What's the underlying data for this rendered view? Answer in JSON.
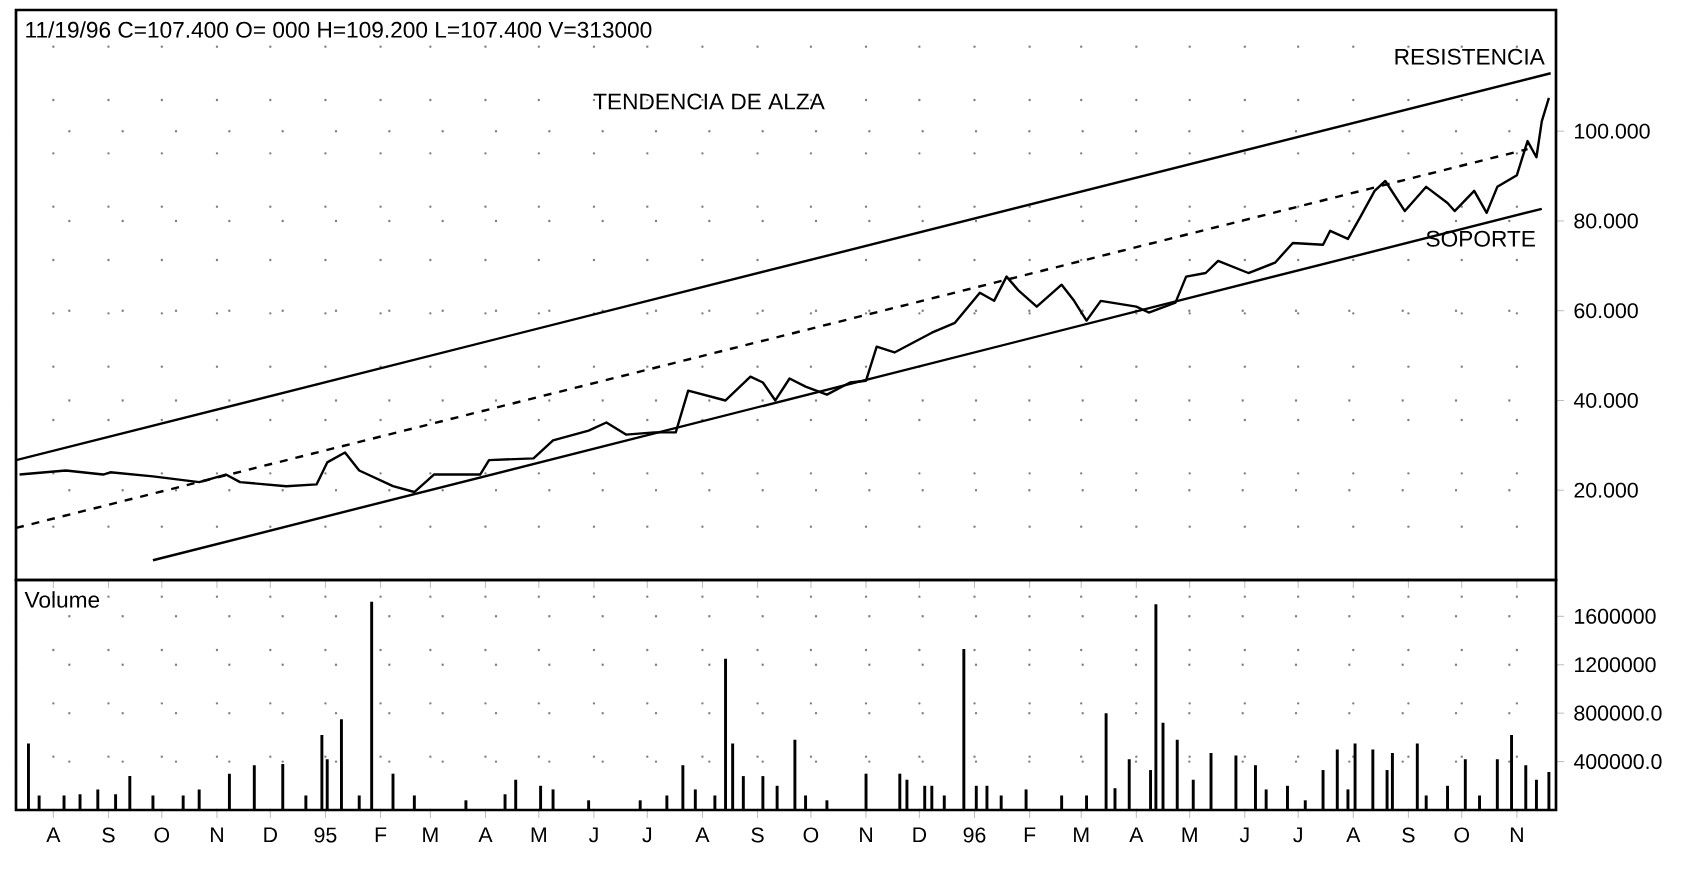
{
  "chart_data": [
    {
      "type": "line",
      "title": "11/19/96 C=107.400 O= 000 H=109.200 L=107.400 V=313000",
      "annotations": [
        "TENDENCIA DE ALZA",
        {
          "text": "RESISTENCIA",
          "x": "1996-11-20",
          "y": 112.9
        },
        {
          "text": "SOPORTE",
          "x": "1996-11-15",
          "y": 82.7
        }
      ],
      "series": [
        {
          "color": "#000000",
          "line_style": "solid",
          "x": [
            "1994-07-13",
            "1994-08-08",
            "1994-08-29",
            "1994-09-02",
            "1994-09-26",
            "1994-10-22",
            "1994-11-06",
            "1994-11-14",
            "1994-12-10",
            "1994-12-27",
            "1995-01-02",
            "1995-01-12",
            "1995-01-20",
            "1995-02-08",
            "1995-02-20",
            "1995-03-03",
            "1995-03-29",
            "1995-04-03",
            "1995-04-28",
            "1995-05-09",
            "1995-05-29",
            "1995-06-08",
            "1995-06-19",
            "1995-07-05",
            "1995-07-17",
            "1995-07-24",
            "1995-08-14",
            "1995-08-28",
            "1995-09-04",
            "1995-09-11",
            "1995-09-19",
            "1995-09-28",
            "1995-10-10",
            "1995-10-23",
            "1995-11-01",
            "1995-11-07",
            "1995-11-17",
            "1995-12-08",
            "1995-12-21",
            "1996-01-04",
            "1996-01-12",
            "1996-01-19",
            "1996-01-26",
            "1996-02-05",
            "1996-02-19",
            "1996-02-26",
            "1996-03-04",
            "1996-03-12",
            "1996-04-01",
            "1996-04-08",
            "1996-04-23",
            "1996-04-29",
            "1996-05-10",
            "1996-05-17",
            "1996-06-03",
            "1996-06-18",
            "1996-06-28",
            "1996-07-15",
            "1996-07-19",
            "1996-07-29",
            "1996-08-05",
            "1996-08-13",
            "1996-08-19",
            "1996-08-30",
            "1996-09-11",
            "1996-09-23",
            "1996-09-27",
            "1996-10-08",
            "1996-10-15",
            "1996-10-21",
            "1996-11-01",
            "1996-11-07",
            "1996-11-12",
            "1996-11-15",
            "1996-11-19"
          ],
          "values": [
            23.5,
            24.4,
            23.5,
            24,
            23.1,
            21.8,
            23.5,
            21.8,
            20.9,
            21.3,
            26.2,
            28.4,
            24.4,
            20.9,
            19.6,
            23.5,
            23.5,
            26.7,
            27.1,
            31.1,
            33.3,
            35.1,
            32.4,
            32.9,
            32.9,
            42.2,
            40,
            45.3,
            44,
            40,
            44.9,
            43.1,
            41.3,
            44,
            44.4,
            52,
            50.7,
            55.1,
            57.3,
            64,
            62.2,
            67.6,
            64.4,
            60.9,
            65.8,
            62.2,
            57.8,
            62.2,
            60.9,
            59.6,
            61.8,
            67.6,
            68.4,
            71.1,
            68.4,
            70.7,
            75.1,
            74.7,
            77.8,
            76,
            80.9,
            86.7,
            88.9,
            82.2,
            87.6,
            84,
            82.2,
            86.7,
            81.8,
            87.6,
            90.2,
            97.8,
            94.2,
            102.2,
            107.4
          ]
        },
        {
          "color": "#000000",
          "line_style": "solid",
          "x": [
            "1994-07-11",
            "1996-11-20"
          ],
          "values": [
            26.7,
            112.9
          ]
        },
        {
          "color": "#000000",
          "line_style": "dashed",
          "x": [
            "1994-07-11",
            "1996-11-07"
          ],
          "values": [
            11.6,
            96
          ]
        },
        {
          "color": "#000000",
          "line_style": "solid",
          "x": [
            "1994-09-26",
            "1996-11-15"
          ],
          "values": [
            4.4,
            82.7
          ]
        }
      ],
      "xlim": [
        "1994-07-11",
        "1996-11-23"
      ],
      "ylim": [
        0,
        127
      ],
      "yticks": [
        {
          "value": 20,
          "label": "20.000"
        },
        {
          "value": 40,
          "label": "40.000"
        },
        {
          "value": 60,
          "label": "60.000"
        },
        {
          "value": 80,
          "label": "80.000"
        },
        {
          "value": 100,
          "label": "100.000"
        }
      ],
      "grid": true,
      "tick_labels": "y"
    },
    {
      "type": "bar",
      "title": "Volume",
      "color": "#000000",
      "x": [
        "1994-07-18",
        "1994-07-24",
        "1994-08-07",
        "1994-08-16",
        "1994-08-26",
        "1994-09-05",
        "1994-09-13",
        "1994-09-26",
        "1994-10-13",
        "1994-10-22",
        "1994-11-08",
        "1994-11-22",
        "1994-12-08",
        "1994-12-21",
        "1994-12-30",
        "1995-01-02",
        "1995-01-10",
        "1995-01-20",
        "1995-01-27",
        "1995-02-08",
        "1995-02-20",
        "1995-03-21",
        "1995-04-12",
        "1995-04-18",
        "1995-05-02",
        "1995-05-09",
        "1995-05-29",
        "1995-06-27",
        "1995-07-12",
        "1995-07-21",
        "1995-07-28",
        "1995-08-08",
        "1995-08-14",
        "1995-08-18",
        "1995-08-24",
        "1995-09-04",
        "1995-09-12",
        "1995-09-22",
        "1995-09-28",
        "1995-10-10",
        "1995-11-01",
        "1995-11-20",
        "1995-11-24",
        "1995-12-04",
        "1995-12-08",
        "1995-12-15",
        "1995-12-26",
        "1996-01-02",
        "1996-01-08",
        "1996-01-16",
        "1996-01-30",
        "1996-02-19",
        "1996-03-04",
        "1996-03-15",
        "1996-03-20",
        "1996-03-28",
        "1996-04-09",
        "1996-04-12",
        "1996-04-16",
        "1996-04-24",
        "1996-05-03",
        "1996-05-13",
        "1996-05-27",
        "1996-06-07",
        "1996-06-13",
        "1996-06-25",
        "1996-07-05",
        "1996-07-15",
        "1996-07-23",
        "1996-07-29",
        "1996-08-02",
        "1996-08-12",
        "1996-08-20",
        "1996-08-23",
        "1996-09-06",
        "1996-09-11",
        "1996-09-23",
        "1996-10-03",
        "1996-10-11",
        "1996-10-21",
        "1996-10-29",
        "1996-11-06",
        "1996-11-12",
        "1996-11-19"
      ],
      "values": [
        550000,
        120000,
        120000,
        130000,
        170000,
        130000,
        280000,
        120000,
        120000,
        170000,
        300000,
        370000,
        380000,
        120000,
        620000,
        420000,
        750000,
        120000,
        1720000,
        300000,
        120000,
        80000,
        130000,
        250000,
        200000,
        170000,
        80000,
        80000,
        120000,
        370000,
        170000,
        120000,
        1250000,
        550000,
        280000,
        280000,
        200000,
        580000,
        120000,
        80000,
        300000,
        300000,
        250000,
        200000,
        200000,
        120000,
        1330000,
        200000,
        200000,
        120000,
        170000,
        120000,
        120000,
        800000,
        180000,
        420000,
        330000,
        1700000,
        720000,
        580000,
        250000,
        470000,
        450000,
        370000,
        170000,
        200000,
        80000,
        330000,
        500000,
        170000,
        550000,
        500000,
        330000,
        470000,
        550000,
        120000,
        200000,
        420000,
        120000,
        420000,
        620000,
        370000,
        250000,
        313000
      ],
      "xlim": [
        "1994-07-11",
        "1996-11-23"
      ],
      "xticks": [
        {
          "value": "1994-08-01",
          "label": "A"
        },
        {
          "value": "1994-09-01",
          "label": "S"
        },
        {
          "value": "1994-10-01",
          "label": "O"
        },
        {
          "value": "1994-11-01",
          "label": "N"
        },
        {
          "value": "1994-12-01",
          "label": "D"
        },
        {
          "value": "1995-01-01",
          "label": "95"
        },
        {
          "value": "1995-02-01",
          "label": "F"
        },
        {
          "value": "1995-03-01",
          "label": "M"
        },
        {
          "value": "1995-04-01",
          "label": "A"
        },
        {
          "value": "1995-05-01",
          "label": "M"
        },
        {
          "value": "1995-06-01",
          "label": "J"
        },
        {
          "value": "1995-07-01",
          "label": "J"
        },
        {
          "value": "1995-08-01",
          "label": "A"
        },
        {
          "value": "1995-09-01",
          "label": "S"
        },
        {
          "value": "1995-10-01",
          "label": "O"
        },
        {
          "value": "1995-11-01",
          "label": "N"
        },
        {
          "value": "1995-12-01",
          "label": "D"
        },
        {
          "value": "1996-01-01",
          "label": "96"
        },
        {
          "value": "1996-02-01",
          "label": "F"
        },
        {
          "value": "1996-03-01",
          "label": "M"
        },
        {
          "value": "1996-04-01",
          "label": "A"
        },
        {
          "value": "1996-05-01",
          "label": "M"
        },
        {
          "value": "1996-06-01",
          "label": "J"
        },
        {
          "value": "1996-07-01",
          "label": "J"
        },
        {
          "value": "1996-08-01",
          "label": "A"
        },
        {
          "value": "1996-09-01",
          "label": "S"
        },
        {
          "value": "1996-10-01",
          "label": "O"
        },
        {
          "value": "1996-11-01",
          "label": "N"
        }
      ],
      "ylim": [
        0,
        1900000
      ],
      "yticks": [
        {
          "value": 400000,
          "label": "400000.0"
        },
        {
          "value": 800000,
          "label": "800000.0"
        },
        {
          "value": 1200000,
          "label": "1200000"
        },
        {
          "value": 1600000,
          "label": "1600000"
        }
      ],
      "grid": true
    }
  ]
}
